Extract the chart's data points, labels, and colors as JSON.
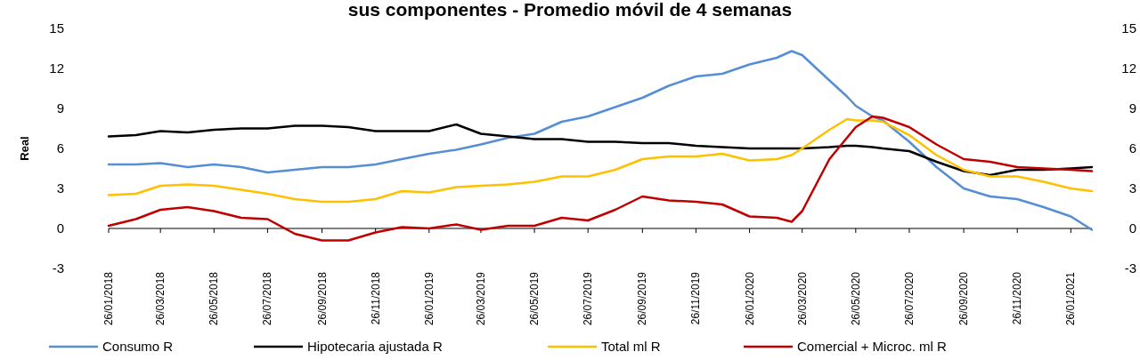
{
  "chart_data": {
    "type": "line",
    "title": "sus componentes - Promedio móvil de 4 semanas",
    "ylabel": "Real",
    "x": [
      "2018-01-26",
      "2018-02-26",
      "2018-03-26",
      "2018-04-26",
      "2018-05-26",
      "2018-06-26",
      "2018-07-26",
      "2018-08-26",
      "2018-09-26",
      "2018-10-26",
      "2018-11-26",
      "2018-12-26",
      "2019-01-26",
      "2019-02-26",
      "2019-03-26",
      "2019-04-26",
      "2019-05-26",
      "2019-06-26",
      "2019-07-26",
      "2019-08-26",
      "2019-09-26",
      "2019-10-26",
      "2019-11-26",
      "2019-12-26",
      "2020-01-26",
      "2020-02-26",
      "2020-03-14",
      "2020-03-26",
      "2020-04-26",
      "2020-05-16",
      "2020-05-26",
      "2020-06-14",
      "2020-06-26",
      "2020-07-26",
      "2020-08-26",
      "2020-09-26",
      "2020-10-26",
      "2020-11-26",
      "2020-12-26",
      "2021-01-26",
      "2021-02-19"
    ],
    "series": [
      {
        "name": "Consumo R",
        "color": "#558ed5",
        "values": [
          4.8,
          4.8,
          4.9,
          4.6,
          4.8,
          4.6,
          4.2,
          4.4,
          4.6,
          4.6,
          4.8,
          5.2,
          5.6,
          5.9,
          6.3,
          6.8,
          7.1,
          8.0,
          8.4,
          9.1,
          9.8,
          10.7,
          11.4,
          11.6,
          12.3,
          12.8,
          13.3,
          13.0,
          11.1,
          9.9,
          9.2,
          8.4,
          8.1,
          6.5,
          4.6,
          3.0,
          2.4,
          2.2,
          1.6,
          0.9,
          -0.1
        ]
      },
      {
        "name": "Hipotecaria ajustada R",
        "color": "#000000",
        "values": [
          6.9,
          7.0,
          7.3,
          7.2,
          7.4,
          7.5,
          7.5,
          7.7,
          7.7,
          7.6,
          7.3,
          7.3,
          7.3,
          7.8,
          7.1,
          6.9,
          6.7,
          6.7,
          6.5,
          6.5,
          6.4,
          6.4,
          6.2,
          6.1,
          6.0,
          6.0,
          6.0,
          6.0,
          6.1,
          6.2,
          6.2,
          6.1,
          6.0,
          5.8,
          5.0,
          4.3,
          4.0,
          4.4,
          4.4,
          4.5,
          4.6
        ]
      },
      {
        "name": "Total ml R",
        "color": "#ffc000",
        "values": [
          2.5,
          2.6,
          3.2,
          3.3,
          3.2,
          2.9,
          2.6,
          2.2,
          2.0,
          2.0,
          2.2,
          2.8,
          2.7,
          3.1,
          3.2,
          3.3,
          3.5,
          3.9,
          3.9,
          4.4,
          5.2,
          5.4,
          5.4,
          5.6,
          5.1,
          5.2,
          5.5,
          6.0,
          7.4,
          8.2,
          8.1,
          8.1,
          8.0,
          7.0,
          5.5,
          4.4,
          3.9,
          3.9,
          3.5,
          3.0,
          2.8
        ]
      },
      {
        "name": "Comercial + Microc. ml R",
        "color": "#c00000",
        "values": [
          0.2,
          0.7,
          1.4,
          1.6,
          1.3,
          0.8,
          0.7,
          -0.4,
          -0.9,
          -0.9,
          -0.3,
          0.1,
          0.0,
          0.3,
          -0.1,
          0.2,
          0.2,
          0.8,
          0.6,
          1.4,
          2.4,
          2.1,
          2.0,
          1.8,
          0.9,
          0.8,
          0.5,
          1.3,
          5.2,
          6.8,
          7.6,
          8.4,
          8.3,
          7.6,
          6.3,
          5.2,
          5.0,
          4.6,
          4.5,
          4.4,
          4.3
        ]
      }
    ],
    "xlim": [
      "2018-01-26",
      "2021-02-19"
    ],
    "xticks": [
      {
        "value": "2018-01-26",
        "label": "26/01/2018"
      },
      {
        "value": "2018-03-26",
        "label": "26/03/2018"
      },
      {
        "value": "2018-05-26",
        "label": "26/05/2018"
      },
      {
        "value": "2018-07-26",
        "label": "26/07/2018"
      },
      {
        "value": "2018-09-26",
        "label": "26/09/2018"
      },
      {
        "value": "2018-11-26",
        "label": "26/11/2018"
      },
      {
        "value": "2019-01-26",
        "label": "26/01/2019"
      },
      {
        "value": "2019-03-26",
        "label": "26/03/2019"
      },
      {
        "value": "2019-05-26",
        "label": "26/05/2019"
      },
      {
        "value": "2019-07-26",
        "label": "26/07/2019"
      },
      {
        "value": "2019-09-26",
        "label": "26/09/2019"
      },
      {
        "value": "2019-11-26",
        "label": "26/11/2019"
      },
      {
        "value": "2020-01-26",
        "label": "26/01/2020"
      },
      {
        "value": "2020-03-26",
        "label": "26/03/2020"
      },
      {
        "value": "2020-05-26",
        "label": "26/05/2020"
      },
      {
        "value": "2020-07-26",
        "label": "26/07/2020"
      },
      {
        "value": "2020-09-26",
        "label": "26/09/2020"
      },
      {
        "value": "2020-11-26",
        "label": "26/11/2020"
      },
      {
        "value": "2021-01-26",
        "label": "26/01/2021"
      }
    ],
    "ylim": [
      -3,
      15
    ],
    "yticks": [
      -3,
      0,
      3,
      6,
      9,
      12,
      15
    ],
    "y2lim": [
      -3,
      15
    ],
    "y2ticks": [
      -3,
      0,
      3,
      6,
      9,
      12,
      15
    ],
    "legend": "bottom",
    "marker": "none",
    "line_style": "solid"
  }
}
